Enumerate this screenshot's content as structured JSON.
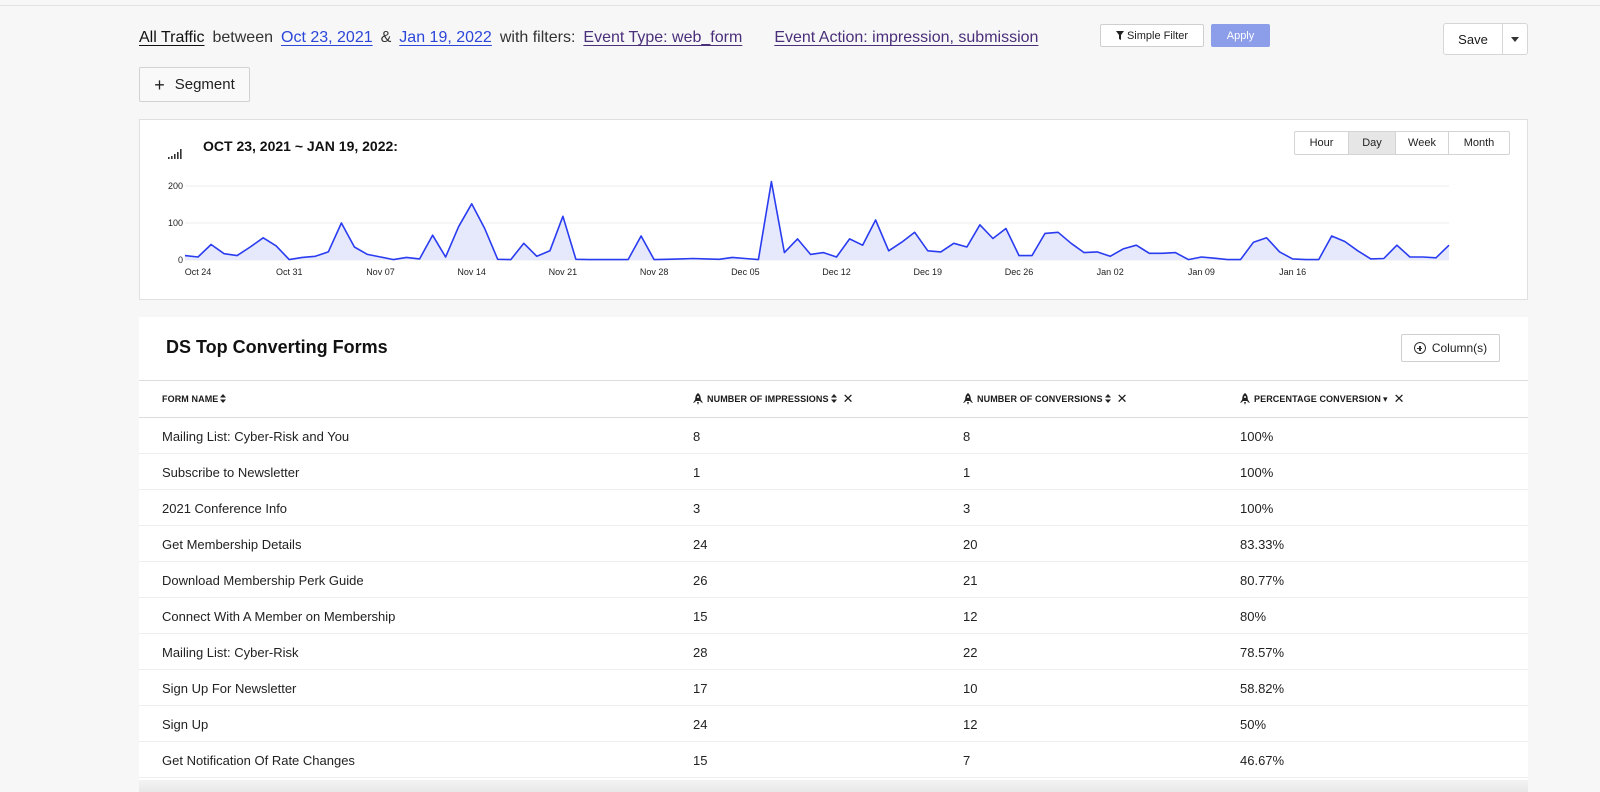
{
  "filter_bar": {
    "scope": "All Traffic",
    "between_text": "between",
    "start_date": "Oct 23, 2021",
    "and_text": "&",
    "end_date": "Jan 19, 2022",
    "with_filters_text": "with filters:",
    "filters": [
      "Event Type: web_form",
      "Event Action: impression, submission"
    ],
    "simple_filter_label": "Simple Filter",
    "apply_label": "Apply",
    "save_label": "Save"
  },
  "segment_button": {
    "icon": "plus-icon",
    "label": "Segment"
  },
  "chart_panel": {
    "title": "OCT 23, 2021 ~ JAN 19, 2022:",
    "granularity": {
      "options": [
        "Hour",
        "Day",
        "Week",
        "Month"
      ],
      "selected": "Day"
    }
  },
  "chart_data": {
    "type": "area",
    "title": "OCT 23, 2021 ~ JAN 19, 2022:",
    "xlabel": "",
    "ylabel": "",
    "x_start": "Oct 23",
    "x_end": "Jan 19",
    "x_ticks": [
      "Oct 24",
      "Oct 31",
      "Nov 07",
      "Nov 14",
      "Nov 21",
      "Nov 28",
      "Dec 05",
      "Dec 12",
      "Dec 19",
      "Dec 26",
      "Jan 02",
      "Jan 09",
      "Jan 16"
    ],
    "y_ticks": [
      0,
      100,
      200
    ],
    "ylim": [
      0,
      200
    ],
    "grid": true,
    "legend": "none",
    "color": "#2a3cf0",
    "fill": "#e6e8fb",
    "series": [
      {
        "values": [
          12,
          8,
          42,
          17,
          12,
          35,
          60,
          38,
          1,
          7,
          10,
          22,
          100,
          35,
          15,
          8,
          1,
          7,
          3,
          67,
          8,
          90,
          152,
          85,
          2,
          1,
          45,
          10,
          25,
          118,
          2,
          1,
          1,
          1,
          1,
          65,
          1,
          2,
          3,
          4,
          3,
          2,
          7,
          4,
          1,
          212,
          20,
          57,
          15,
          20,
          8,
          57,
          40,
          108,
          25,
          48,
          75,
          25,
          22,
          45,
          35,
          95,
          58,
          85,
          12,
          12,
          72,
          75,
          45,
          20,
          22,
          10,
          30,
          40,
          18,
          18,
          20,
          1,
          8,
          5,
          1,
          1,
          48,
          60,
          22,
          3,
          1,
          1,
          65,
          50,
          25,
          3,
          4,
          40,
          8,
          8,
          6,
          40
        ]
      }
    ]
  },
  "table": {
    "title": "DS Top Converting Forms",
    "columns_button_label": "Column(s)",
    "columns": [
      {
        "label": "FORM NAME",
        "metric": false,
        "sort": "both",
        "removable": false
      },
      {
        "label": "NUMBER OF IMPRESSIONS",
        "metric": true,
        "sort": "both",
        "removable": true
      },
      {
        "label": "NUMBER OF CONVERSIONS",
        "metric": true,
        "sort": "both",
        "removable": true
      },
      {
        "label": "PERCENTAGE CONVERSION",
        "metric": true,
        "sort": "desc",
        "removable": true
      }
    ],
    "rows": [
      [
        "Mailing List: Cyber-Risk and You",
        "8",
        "8",
        "100%"
      ],
      [
        "Subscribe to Newsletter",
        "1",
        "1",
        "100%"
      ],
      [
        "2021 Conference Info",
        "3",
        "3",
        "100%"
      ],
      [
        "Get Membership Details",
        "24",
        "20",
        "83.33%"
      ],
      [
        "Download Membership Perk Guide",
        "26",
        "21",
        "80.77%"
      ],
      [
        "Connect With A Member on Membership",
        "15",
        "12",
        "80%"
      ],
      [
        "Mailing List: Cyber-Risk",
        "28",
        "22",
        "78.57%"
      ],
      [
        "Sign Up For Newsletter",
        "17",
        "10",
        "58.82%"
      ],
      [
        "Sign Up",
        "24",
        "12",
        "50%"
      ],
      [
        "Get Notification Of Rate Changes",
        "15",
        "7",
        "46.67%"
      ]
    ]
  }
}
